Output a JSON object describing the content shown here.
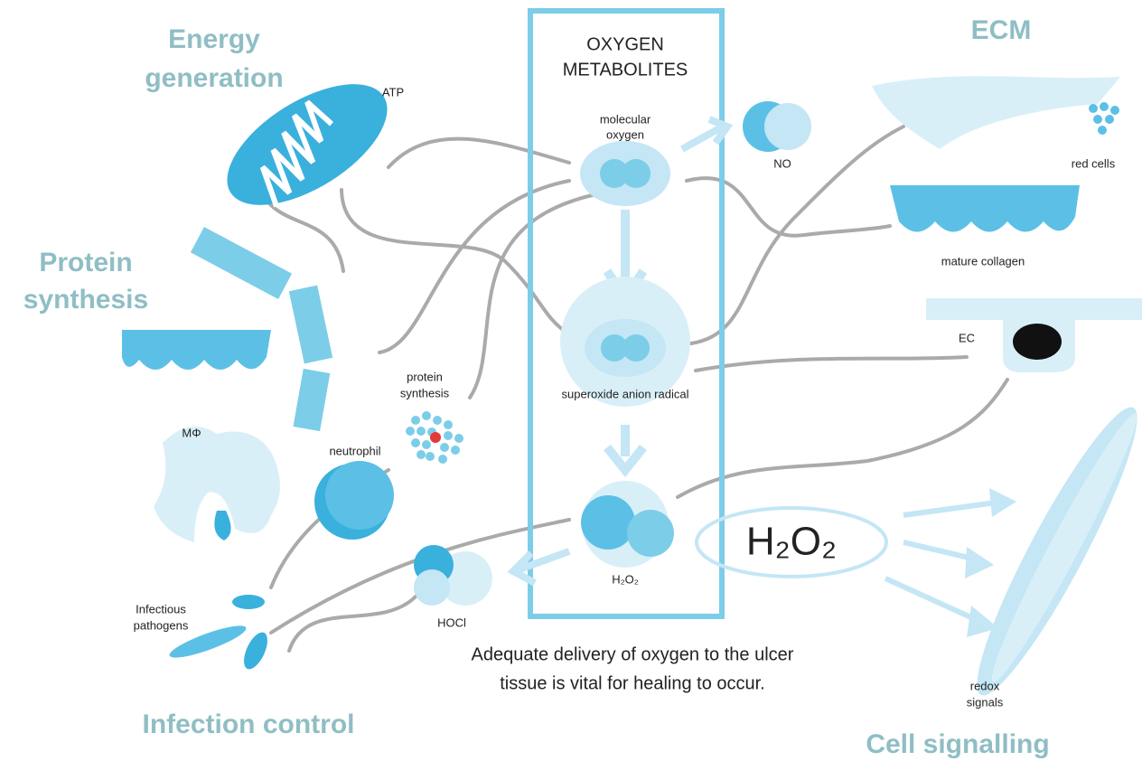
{
  "headings": {
    "energy_generation": [
      "Energy",
      "generation"
    ],
    "protein_synthesis": [
      "Protein",
      "synthesis"
    ],
    "ecm": "ECM",
    "infection_control": "Infection control",
    "cell_signalling": "Cell signalling"
  },
  "center": {
    "title": [
      "OXYGEN",
      "METABOLITES"
    ],
    "molecular_oxygen": [
      "molecular",
      "oxygen"
    ],
    "superoxide": "superoxide anion radical",
    "h2o2": "H₂O₂"
  },
  "labels": {
    "atp": "ATP",
    "no": "NO",
    "red_cells": "red cells",
    "mature_collagen": "mature collagen",
    "ec": "EC",
    "macrophage": "MΦ",
    "protein_synthesis": [
      "protein",
      "synthesis"
    ],
    "neutrophil": "neutrophil",
    "hocl": "HOCl",
    "pathogens": [
      "Infectious",
      "pathogens"
    ],
    "h2o2_big": "H₂O₂",
    "redox": [
      "redox",
      "signals"
    ]
  },
  "caption": [
    "Adequate delivery of oxygen to the ulcer",
    "tissue is vital for healing to occur."
  ]
}
